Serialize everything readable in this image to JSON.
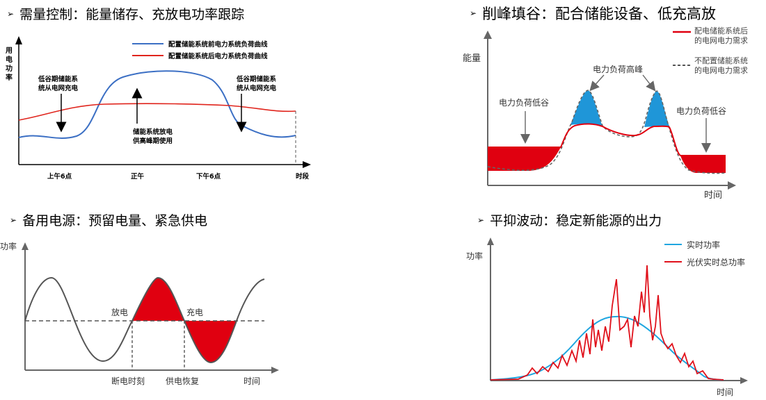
{
  "headings": {
    "q1": "需量控制：能量储存、充放电功率跟踪",
    "q2": "削峰填谷：配合储能设备、低充高放",
    "q3": "备用电源：预留电量、紧急供电",
    "q4": "平抑波动：稳定新能源的出力",
    "bullet": "➢"
  },
  "colors": {
    "blue": "#3b6fc4",
    "red": "#e0241c",
    "fill_red": "#e00010",
    "fill_blue": "#1f96d8",
    "axis": "#000000",
    "grey": "#555555"
  },
  "q1": {
    "y_axis": [
      "用",
      "电",
      "功",
      "率"
    ],
    "legend_before": "配置储能系统前电力系统负荷曲线",
    "legend_after": "配置储能系统后电力系统负荷曲线",
    "annot_left": [
      "低谷期储能系",
      "统从电网充电"
    ],
    "annot_mid": [
      "储能系统放电",
      "供高峰期使用"
    ],
    "annot_right": [
      "低谷期储能系",
      "统从电网充电"
    ],
    "x_ticks": [
      "上午6点",
      "正午",
      "下午6点",
      "时段"
    ]
  },
  "q2": {
    "y_axis": "能量",
    "x_axis": "时间",
    "legend_after": [
      "配电储能系统后",
      "的电网电力需求"
    ],
    "legend_none": [
      "不配置储能系统",
      "的电网电力需求"
    ],
    "peak_label": "电力负荷高峰",
    "valley_left": "电力负荷低谷",
    "valley_right": "电力负荷低谷"
  },
  "q3": {
    "y_axis": "功率",
    "x_axis": "时间",
    "discharge": "放电",
    "charge": "充电",
    "cutoff": "断电时刻",
    "restore": "供电恢复"
  },
  "q4": {
    "y_axis": "功率",
    "x_axis": "时间",
    "legend_realtime": "实时功率",
    "legend_pv_total": "光伏实时总功率"
  }
}
